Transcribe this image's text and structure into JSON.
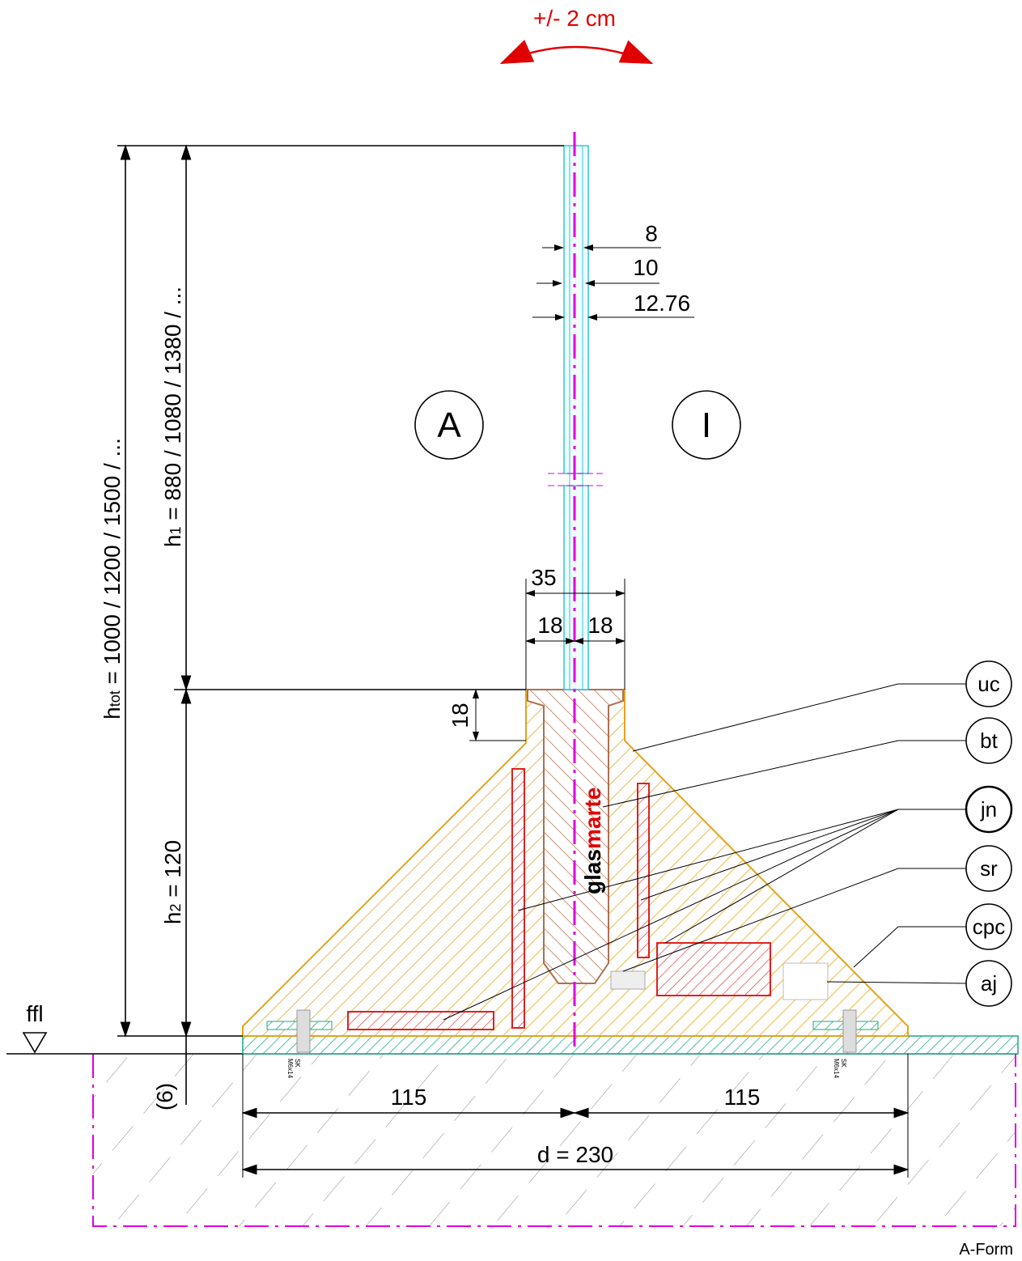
{
  "drawing": {
    "movement": "+/- 2 cm",
    "glass_thickness": [
      "8",
      "10",
      "12.76"
    ],
    "side_labels": [
      "A",
      "I"
    ],
    "channel_width": "35",
    "half_widths": [
      "18",
      "18"
    ],
    "channel_depth": "18",
    "h_total": {
      "symbol": "h",
      "sub": "tot",
      "text": " = 1000 / 1200 / 1500 / ..."
    },
    "h1": {
      "symbol": "h",
      "sub": "1",
      "text": " = 880 / 1080 / 1380 / ..."
    },
    "h2": {
      "symbol": "h",
      "sub": "2",
      "text": " = 120"
    },
    "floor_offset": "(6)",
    "floor_label": "ffl",
    "half_bases": [
      "115",
      "115"
    ],
    "base_width": "d = 230",
    "screws": [
      {
        "type": "SK",
        "size": "M6x14"
      },
      {
        "type": "SK",
        "size": "M6x14"
      }
    ],
    "logo": {
      "first": "glas",
      "second": "marte"
    },
    "callouts": [
      "uc",
      "bt",
      "jn",
      "sr",
      "cpc",
      "aj"
    ],
    "form": "A-Form"
  }
}
